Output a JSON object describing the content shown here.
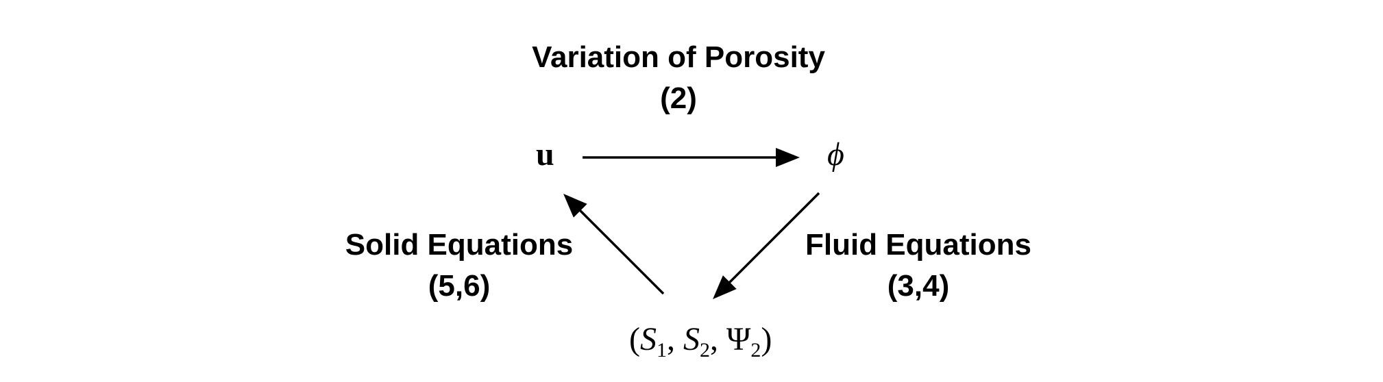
{
  "top_label": {
    "title": "Variation of Porosity",
    "ref": "(2)"
  },
  "left_label": {
    "title": "Solid Equations",
    "ref": "(5,6)"
  },
  "right_label": {
    "title": "Fluid Equations",
    "ref": "(3,4)"
  },
  "nodes": {
    "u": "u",
    "phi": "ϕ",
    "bottom": {
      "open": "(",
      "s1": "S",
      "s1_sub": "1",
      "sep1": ", ",
      "s2": "S",
      "s2_sub": "2",
      "sep2": ", ",
      "psi": "Ψ",
      "psi_sub": "2",
      "close": ")"
    }
  }
}
